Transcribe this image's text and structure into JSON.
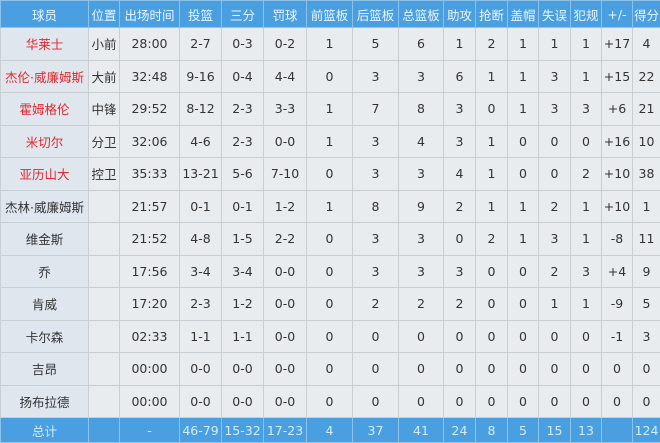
{
  "headers": [
    "球员",
    "位置",
    "出场时间",
    "投篮",
    "三分",
    "罚球",
    "前篮板",
    "后篮板",
    "总篮板",
    "助攻",
    "抢断",
    "盖帽",
    "失误",
    "犯规",
    "+/-",
    "得分"
  ],
  "rows": [
    [
      "华莱士",
      "小前",
      "28:00",
      "2-7",
      "0-3",
      "0-2",
      "1",
      "5",
      "6",
      "1",
      "2",
      "1",
      "1",
      "1",
      "+17",
      "4"
    ],
    [
      "杰伦·威廉姆斯",
      "大前",
      "32:48",
      "9-16",
      "0-4",
      "4-4",
      "0",
      "3",
      "3",
      "6",
      "1",
      "1",
      "3",
      "1",
      "+15",
      "22"
    ],
    [
      "霍姆格伦",
      "中锋",
      "29:52",
      "8-12",
      "2-3",
      "3-3",
      "1",
      "7",
      "8",
      "3",
      "0",
      "1",
      "3",
      "3",
      "+6",
      "21"
    ],
    [
      "米切尔",
      "分卫",
      "32:06",
      "4-6",
      "2-3",
      "0-0",
      "1",
      "3",
      "4",
      "3",
      "1",
      "0",
      "0",
      "0",
      "+16",
      "10"
    ],
    [
      "亚历山大",
      "控卫",
      "35:33",
      "13-21",
      "5-6",
      "7-10",
      "0",
      "3",
      "3",
      "4",
      "1",
      "0",
      "0",
      "2",
      "+10",
      "38"
    ],
    [
      "杰林·威廉姆斯",
      "",
      "21:57",
      "0-1",
      "0-1",
      "1-2",
      "1",
      "8",
      "9",
      "2",
      "1",
      "1",
      "2",
      "1",
      "+10",
      "1"
    ],
    [
      "维金斯",
      "",
      "21:52",
      "4-8",
      "1-5",
      "2-2",
      "0",
      "3",
      "3",
      "0",
      "2",
      "1",
      "3",
      "1",
      "-8",
      "11"
    ],
    [
      "乔",
      "",
      "17:56",
      "3-4",
      "3-4",
      "0-0",
      "0",
      "3",
      "3",
      "3",
      "0",
      "0",
      "2",
      "3",
      "+4",
      "9"
    ],
    [
      "肯威",
      "",
      "17:20",
      "2-3",
      "1-2",
      "0-0",
      "0",
      "2",
      "2",
      "2",
      "0",
      "0",
      "1",
      "1",
      "-9",
      "5"
    ],
    [
      "卡尔森",
      "",
      "02:33",
      "1-1",
      "1-1",
      "0-0",
      "0",
      "0",
      "0",
      "0",
      "0",
      "0",
      "0",
      "0",
      "-1",
      "3"
    ],
    [
      "吉昂",
      "",
      "00:00",
      "0-0",
      "0-0",
      "0-0",
      "0",
      "0",
      "0",
      "0",
      "0",
      "0",
      "0",
      "0",
      "0",
      "0"
    ],
    [
      "扬布拉德",
      "",
      "00:00",
      "0-0",
      "0-0",
      "0-0",
      "0",
      "0",
      "0",
      "0",
      "0",
      "0",
      "0",
      "0",
      "0",
      "0"
    ]
  ],
  "starters": 5,
  "total": [
    "总计",
    "",
    "-",
    "46-79",
    "15-32",
    "17-23",
    "4",
    "37",
    "41",
    "24",
    "8",
    "5",
    "15",
    "13",
    "",
    "124"
  ],
  "colors": {
    "header": "#4a9fe0",
    "starter_name": "#e0282e"
  }
}
